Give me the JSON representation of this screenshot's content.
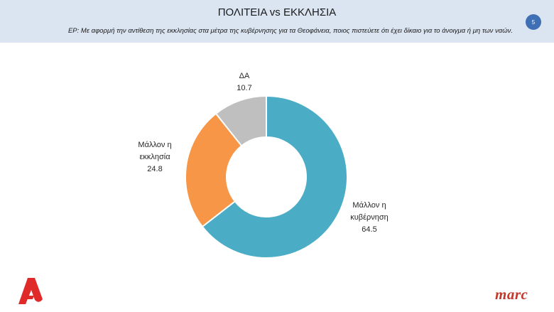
{
  "header": {
    "title": "ΠΟΛΙΤΕΙΑ vs ΕΚΚΛΗΣΙΑ",
    "question": "ΕΡ: Με αφορμή την αντίθεση της εκκλησίας στα μέτρα της κυβέρνησης για τα Θεοφάνεια, ποιος πιστεύετε ότι έχει δίκαιο για το άνοιγμα ή μη των ναών.",
    "page_number": "5"
  },
  "chart_data": {
    "type": "pie",
    "donut": true,
    "categories": [
      "Μάλλον η κυβέρνηση",
      "Μάλλον η εκκλησία",
      "ΔΑ"
    ],
    "values": [
      64.5,
      24.8,
      10.7
    ],
    "colors": [
      "#4bacc6",
      "#f79646",
      "#bfbfbf"
    ],
    "labels": [
      {
        "lines": [
          "Μάλλον η",
          "κυβέρνηση"
        ],
        "value": "64.5"
      },
      {
        "lines": [
          "Μάλλον η",
          "εκκλησία"
        ],
        "value": "24.8"
      },
      {
        "lines": [
          "ΔΑ"
        ],
        "value": "10.7"
      }
    ]
  },
  "logos": {
    "channel": "Α",
    "pollster": "marc"
  }
}
